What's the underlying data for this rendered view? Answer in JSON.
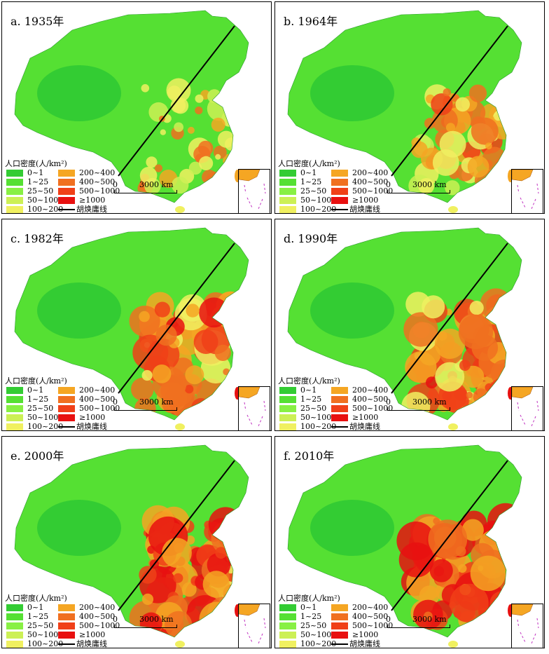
{
  "panels": [
    {
      "label": "a. 1935年",
      "intensity": 0.25
    },
    {
      "label": "b. 1964年",
      "intensity": 0.5
    },
    {
      "label": "c. 1982年",
      "intensity": 0.7
    },
    {
      "label": "d. 1990年",
      "intensity": 0.75
    },
    {
      "label": "e. 2000年",
      "intensity": 0.85
    },
    {
      "label": "f. 2010年",
      "intensity": 0.9
    }
  ],
  "legend": {
    "title": "人口密度(人/km²)",
    "classes": [
      {
        "label": "0~1",
        "color": "#33cc33"
      },
      {
        "label": "1~25",
        "color": "#55e033"
      },
      {
        "label": "25~50",
        "color": "#88f044"
      },
      {
        "label": "50~100",
        "color": "#ccf055"
      },
      {
        "label": "100~200",
        "color": "#f0f060"
      },
      {
        "label": "200~400",
        "color": "#f5a623"
      },
      {
        "label": "400~500",
        "color": "#f07020"
      },
      {
        "label": "500~1000",
        "color": "#f04018"
      },
      {
        "label": "≥1000",
        "color": "#e81010"
      }
    ],
    "hu_line_label": "胡焕庸线"
  },
  "scale": {
    "zero": "0",
    "distance": "3000 km"
  }
}
